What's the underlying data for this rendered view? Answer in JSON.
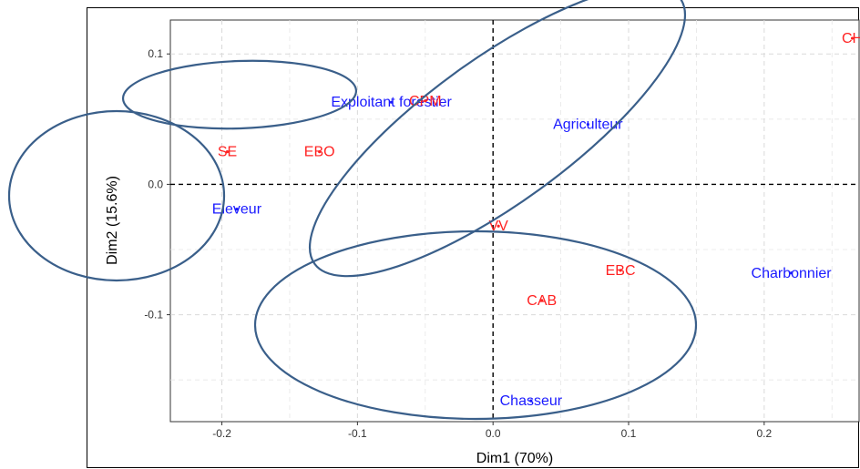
{
  "chart_data": {
    "type": "scatter",
    "title": "",
    "xlabel": "Dim1 (70%)",
    "ylabel": "Dim2 (15.6%)",
    "xlim": [
      -0.238,
      0.27
    ],
    "ylim": [
      -0.182,
      0.126
    ],
    "xticks": [
      -0.2,
      -0.1,
      0.0,
      0.1,
      0.2
    ],
    "xtick_labels": [
      "-0.2",
      "-0.1",
      "0.0",
      "0.1",
      "0.2"
    ],
    "yticks": [
      -0.1,
      0.0,
      0.1
    ],
    "ytick_labels": [
      "-0.1",
      "0.0",
      "0.1"
    ],
    "grid": true,
    "reference_lines": {
      "x": 0,
      "y": 0
    },
    "series": [
      {
        "color": "#1a1aff",
        "points": [
          {
            "label": "Exploitant forestier",
            "x": -0.075,
            "y": 0.063
          },
          {
            "label": "Agriculteur",
            "x": 0.07,
            "y": 0.046
          },
          {
            "label": "Eleveur",
            "x": -0.189,
            "y": -0.019
          },
          {
            "label": "Charbonnier",
            "x": 0.22,
            "y": -0.068
          },
          {
            "label": "Chasseur",
            "x": 0.028,
            "y": -0.166
          }
        ]
      },
      {
        "color": "#ff2222",
        "points": [
          {
            "label": "CH",
            "x": 0.265,
            "y": 0.112
          },
          {
            "label": "CPM",
            "x": -0.05,
            "y": 0.064
          },
          {
            "label": "SE",
            "x": -0.196,
            "y": 0.025
          },
          {
            "label": "EBO",
            "x": -0.128,
            "y": 0.025
          },
          {
            "label": "VV",
            "x": 0.004,
            "y": -0.032
          },
          {
            "label": "EBC",
            "x": 0.094,
            "y": -0.066
          },
          {
            "label": "CAB",
            "x": 0.036,
            "y": -0.089
          }
        ]
      }
    ],
    "ellipse_color": "#3a5f8a"
  }
}
